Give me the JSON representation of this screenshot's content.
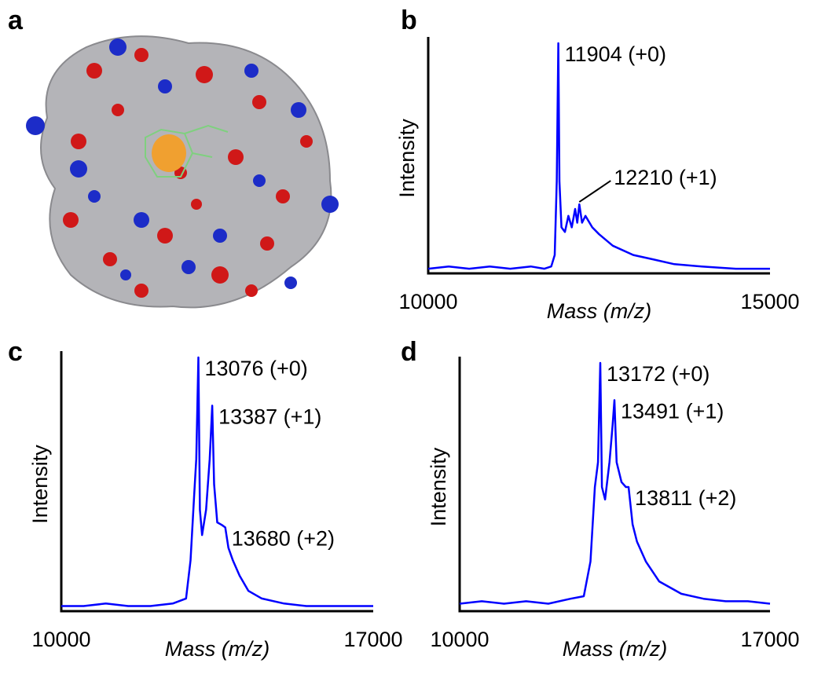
{
  "panel_labels": [
    "a",
    "b",
    "c",
    "d"
  ],
  "chart_data": [
    {
      "type": "line",
      "xlabel": "Mass (m/z)",
      "ylabel": "Intensity",
      "color": "#0000ff",
      "xlim": [
        10000,
        15000
      ],
      "xticks": [
        10000,
        15000
      ],
      "ylim": [
        0,
        100
      ],
      "x": [
        10000,
        10300,
        10600,
        10900,
        11200,
        11500,
        11700,
        11800,
        11850,
        11880,
        11904,
        11920,
        11950,
        12000,
        12050,
        12100,
        12150,
        12180,
        12210,
        12250,
        12300,
        12400,
        12500,
        12700,
        13000,
        13300,
        13600,
        14000,
        14500,
        15000
      ],
      "values": [
        2,
        3,
        2,
        3,
        2,
        3,
        2,
        3,
        8,
        40,
        100,
        40,
        20,
        18,
        25,
        20,
        28,
        22,
        30,
        22,
        25,
        20,
        17,
        12,
        8,
        6,
        4,
        3,
        2,
        2
      ],
      "annotations": [
        {
          "x": 11904,
          "y": 100,
          "text": "11904 (+0)",
          "leader": false
        },
        {
          "x": 12210,
          "y": 30,
          "text": "12210 (+1)",
          "leader": true
        }
      ]
    },
    {
      "type": "line",
      "xlabel": "Mass (m/z)",
      "ylabel": "Intensity",
      "color": "#0000ff",
      "xlim": [
        10000,
        17000
      ],
      "xticks": [
        10000,
        17000
      ],
      "ylim": [
        0,
        100
      ],
      "x": [
        10000,
        10500,
        11000,
        11500,
        12000,
        12500,
        12800,
        12900,
        12980,
        13030,
        13076,
        13110,
        13160,
        13250,
        13330,
        13387,
        13430,
        13500,
        13600,
        13680,
        13750,
        13850,
        14000,
        14200,
        14500,
        15000,
        15500,
        16000,
        16500,
        17000
      ],
      "values": [
        2,
        2,
        3,
        2,
        2,
        3,
        5,
        20,
        45,
        60,
        100,
        40,
        30,
        40,
        60,
        81,
        50,
        35,
        34,
        33,
        25,
        20,
        14,
        8,
        5,
        3,
        2,
        2,
        2,
        2
      ],
      "annotations": [
        {
          "x": 13076,
          "y": 100,
          "text": "13076 (+0)",
          "leader": false
        },
        {
          "x": 13387,
          "y": 81,
          "text": "13387 (+1)",
          "leader": false
        },
        {
          "x": 13680,
          "y": 33,
          "text": "13680 (+2)",
          "leader": false
        }
      ]
    },
    {
      "type": "line",
      "xlabel": "Mass (m/z)",
      "ylabel": "Intensity",
      "color": "#0000ff",
      "xlim": [
        10000,
        17000
      ],
      "xticks": [
        10000,
        17000
      ],
      "ylim": [
        0,
        100
      ],
      "x": [
        10000,
        10500,
        11000,
        11500,
        12000,
        12500,
        12800,
        12950,
        13050,
        13120,
        13172,
        13210,
        13280,
        13380,
        13450,
        13491,
        13540,
        13650,
        13750,
        13811,
        13900,
        14000,
        14200,
        14500,
        15000,
        15500,
        16000,
        16500,
        17000
      ],
      "values": [
        3,
        4,
        3,
        4,
        3,
        5,
        6,
        20,
        50,
        60,
        100,
        50,
        45,
        60,
        75,
        85,
        60,
        52,
        50,
        50,
        35,
        28,
        20,
        12,
        7,
        5,
        4,
        4,
        3
      ],
      "annotations": [
        {
          "x": 13172,
          "y": 100,
          "text": "13172 (+0)",
          "leader": false
        },
        {
          "x": 13491,
          "y": 85,
          "text": "13491 (+1)",
          "leader": false
        },
        {
          "x": 13811,
          "y": 50,
          "text": "13811 (+2)",
          "leader": false
        }
      ]
    }
  ]
}
